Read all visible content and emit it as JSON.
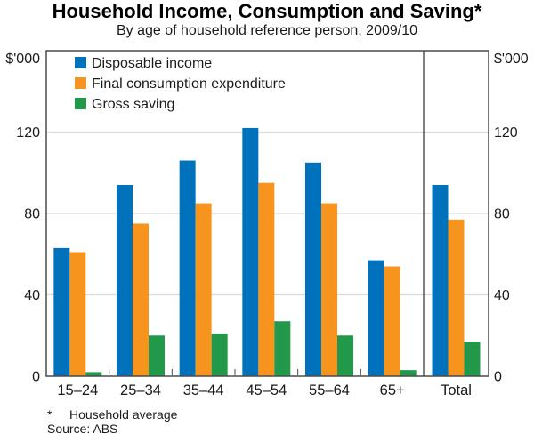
{
  "chart_data": {
    "type": "bar",
    "title": "Household Income, Consumption and Saving*",
    "subtitle": "By age of household reference person, 2009/10",
    "unit": "$'000",
    "categories": [
      "15–24",
      "25–34",
      "35–44",
      "45–54",
      "55–64",
      "65+",
      "Total"
    ],
    "separate_last_category": true,
    "series": [
      {
        "name": "Disposable income",
        "color": "#0072BC",
        "values": [
          63,
          94,
          106,
          122,
          105,
          57,
          94
        ]
      },
      {
        "name": "Final consumption expenditure",
        "color": "#F7941E",
        "values": [
          61,
          75,
          85,
          95,
          85,
          54,
          77
        ]
      },
      {
        "name": "Gross saving",
        "color": "#22984A",
        "values": [
          2,
          20,
          21,
          27,
          20,
          3,
          17
        ]
      }
    ],
    "ylim": [
      0,
      160
    ],
    "yticks": [
      0,
      40,
      80,
      120
    ],
    "grid": true,
    "legend_position": "top-left"
  },
  "footnote": {
    "marker": "*",
    "text": "Household average",
    "source": "Source: ABS"
  }
}
